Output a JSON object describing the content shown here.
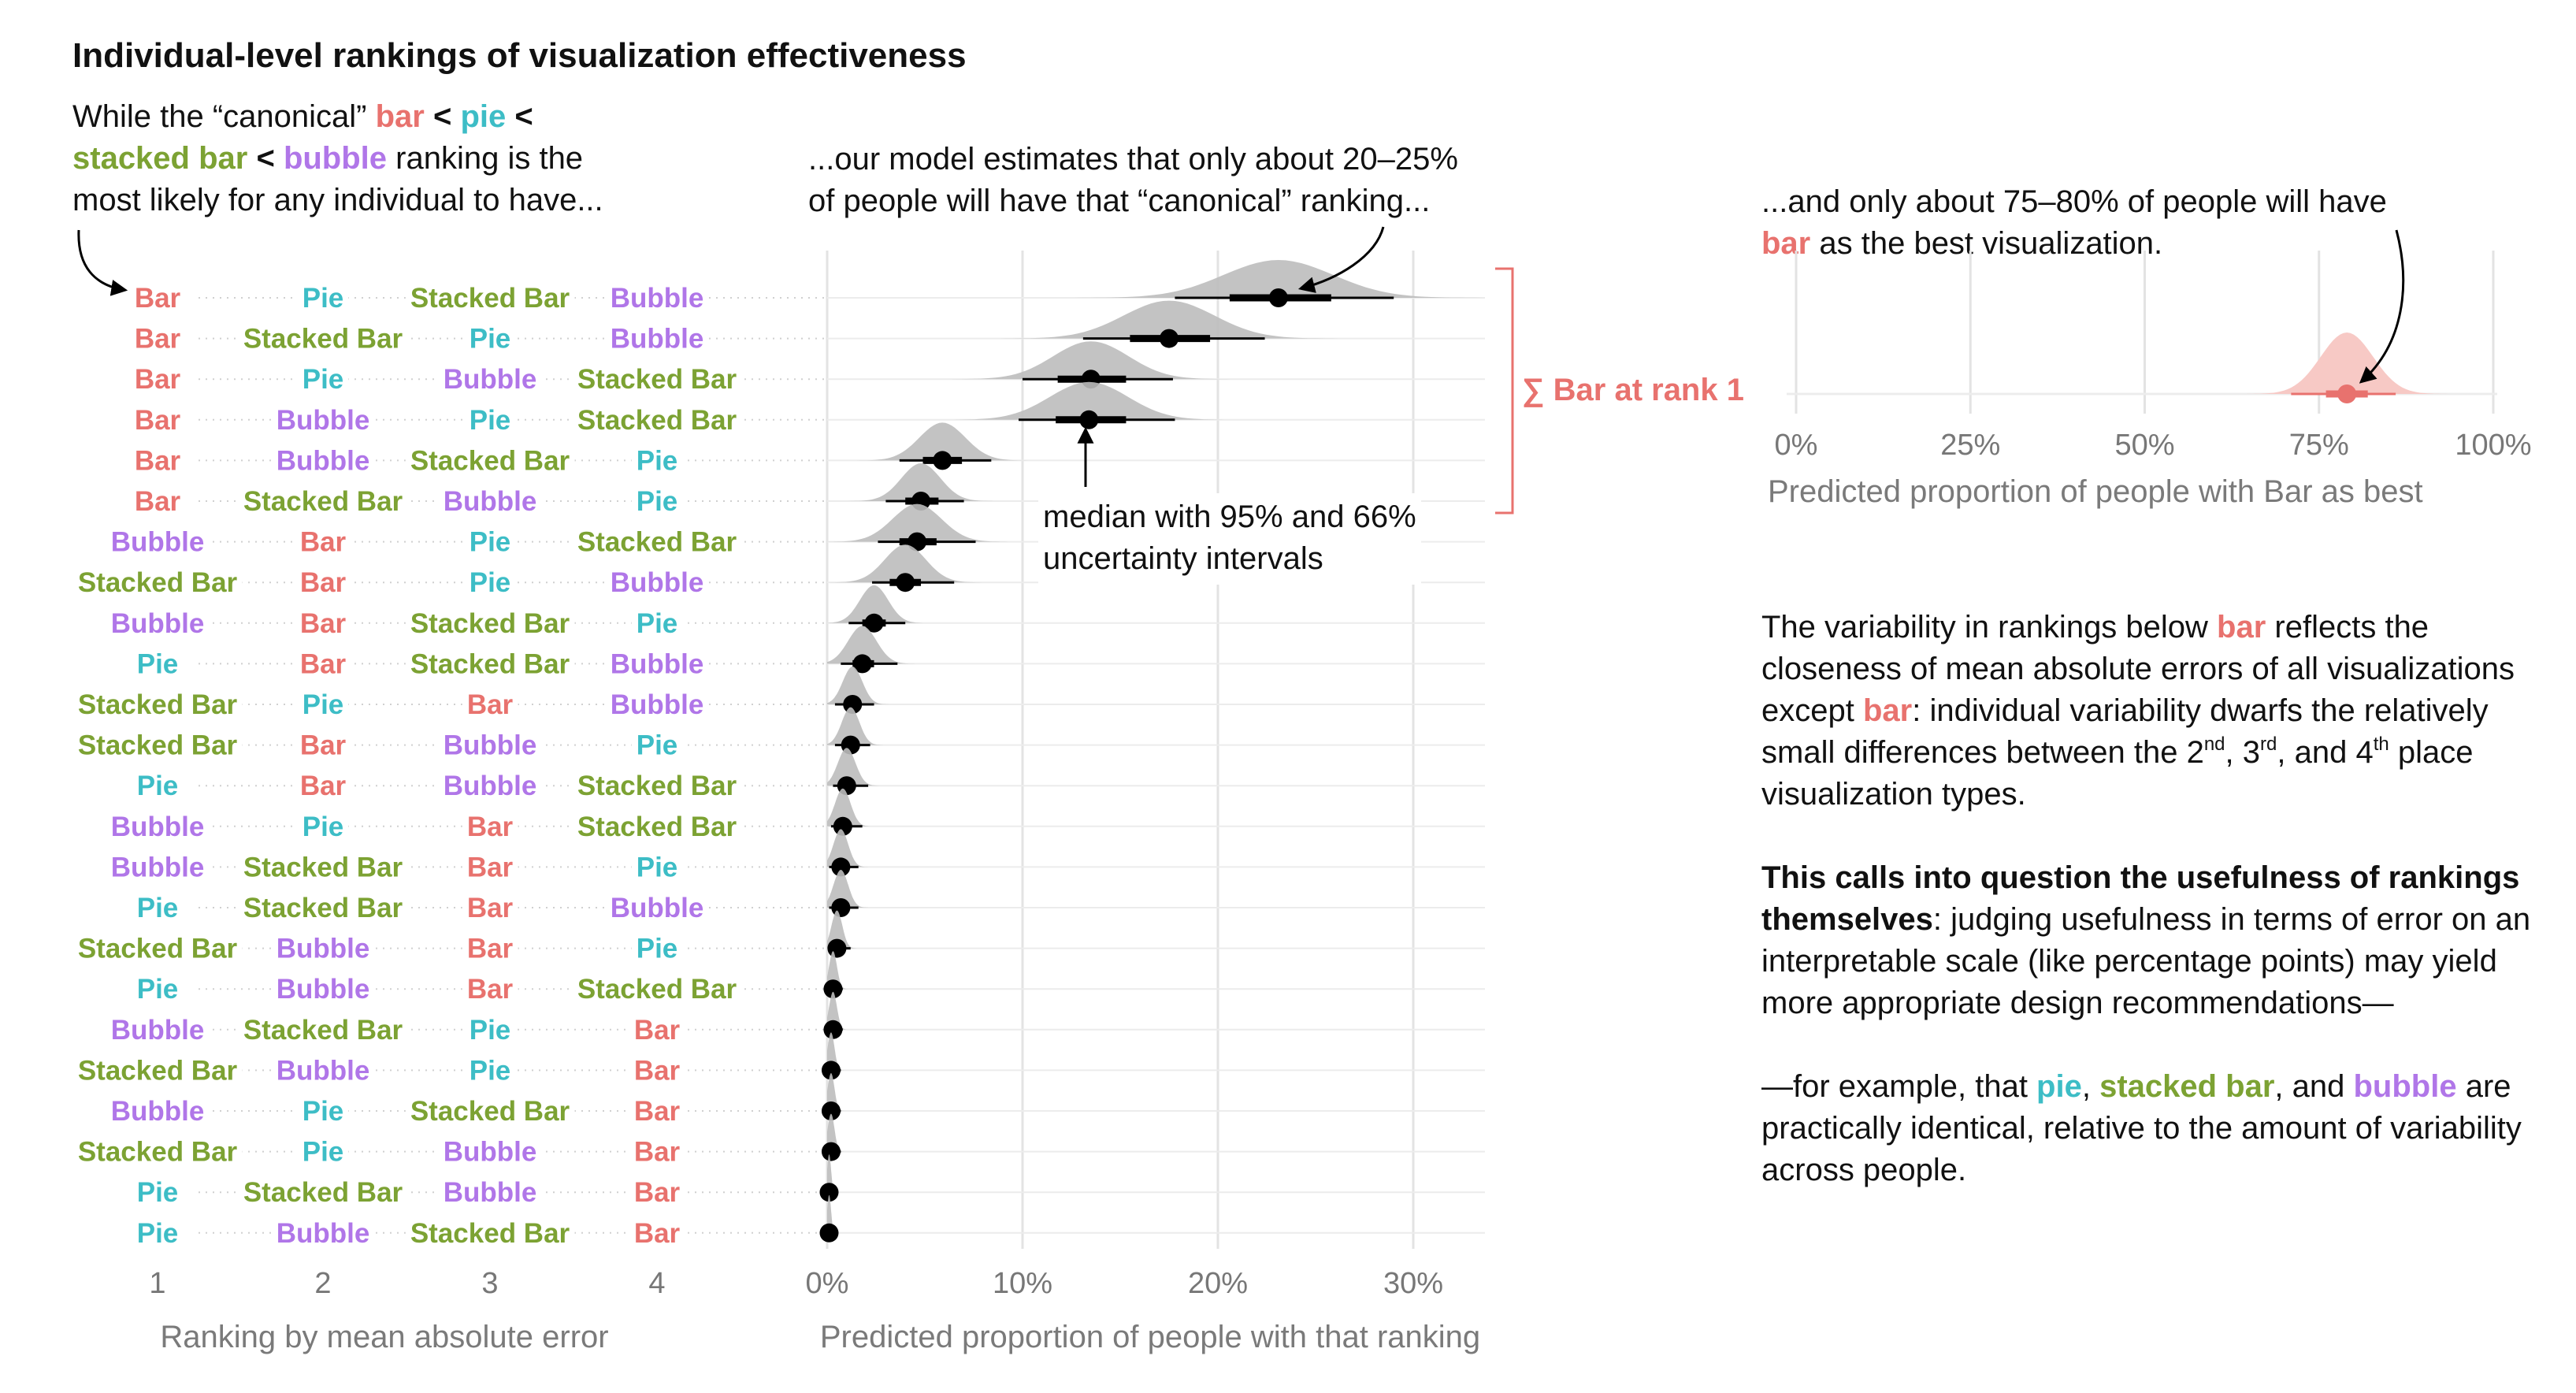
{
  "title": "Individual-level rankings of visualization effectiveness",
  "colors": {
    "Bar": "#E8726E",
    "Pie": "#3DBDC6",
    "Stacked Bar": "#7CA233",
    "Bubble": "#B076E8",
    "density": "#bdbdbd",
    "bar_density": "#f7c9c5",
    "grid": "#e3e3e3",
    "axis_text": "#777777"
  },
  "annotations": {
    "intro": {
      "p1": "While the “canonical” ",
      "bar": "bar",
      "lt1": " < ",
      "pie": "pie",
      "lt2": " <",
      "stacked": "stacked bar",
      "lt3": " < ",
      "bubble": "bubble",
      "p2": " ranking is the",
      "p3": "most likely for any individual to have..."
    },
    "model": {
      "line1": "...our model estimates that only about 20–25%",
      "line2": "of people will have that “canonical” ranking..."
    },
    "bar_best": {
      "line1": "...and only about 75–80% of people will have",
      "bar": "bar",
      "line2": " as the best visualization."
    },
    "median": {
      "line1": "median with 95% and 66%",
      "line2": "uncertainty intervals"
    },
    "sum_label": "∑ Bar at rank 1",
    "body": {
      "t1": "The variability in rankings below ",
      "bar1": "bar",
      "t2": " reflects the closeness of mean absolute errors of all visualizations except ",
      "bar2": "bar",
      "t3": ": individual variability dwarfs the relatively small differences between the 2",
      "sup_nd": "nd",
      "t4": ", 3",
      "sup_rd": "rd",
      "t5": ", and 4",
      "sup_th": "th",
      "t6": " place visualization types.",
      "bold": "This calls into question the usefulness of rankings themselves",
      "t7": ": judging usefulness in terms of error on an interpretable scale (like percentage points) may yield more appropriate design recommendations—",
      "t8": "—for example, that ",
      "pie": "pie",
      "c1": ", ",
      "stacked": "stacked bar",
      "c2": ", and ",
      "bubble": "bubble",
      "t9": " are practically identical, relative to the amount of variability across people."
    }
  },
  "chart_data": [
    {
      "type": "table",
      "xlabel": "Ranking by mean absolute error",
      "columns": [
        "1",
        "2",
        "3",
        "4"
      ],
      "rows": [
        [
          "Bar",
          "Pie",
          "Stacked Bar",
          "Bubble"
        ],
        [
          "Bar",
          "Stacked Bar",
          "Pie",
          "Bubble"
        ],
        [
          "Bar",
          "Pie",
          "Bubble",
          "Stacked Bar"
        ],
        [
          "Bar",
          "Bubble",
          "Pie",
          "Stacked Bar"
        ],
        [
          "Bar",
          "Bubble",
          "Stacked Bar",
          "Pie"
        ],
        [
          "Bar",
          "Stacked Bar",
          "Bubble",
          "Pie"
        ],
        [
          "Bubble",
          "Bar",
          "Pie",
          "Stacked Bar"
        ],
        [
          "Stacked Bar",
          "Bar",
          "Pie",
          "Bubble"
        ],
        [
          "Bubble",
          "Bar",
          "Stacked Bar",
          "Pie"
        ],
        [
          "Pie",
          "Bar",
          "Stacked Bar",
          "Bubble"
        ],
        [
          "Stacked Bar",
          "Pie",
          "Bar",
          "Bubble"
        ],
        [
          "Stacked Bar",
          "Bar",
          "Bubble",
          "Pie"
        ],
        [
          "Pie",
          "Bar",
          "Bubble",
          "Stacked Bar"
        ],
        [
          "Bubble",
          "Pie",
          "Bar",
          "Stacked Bar"
        ],
        [
          "Bubble",
          "Stacked Bar",
          "Bar",
          "Pie"
        ],
        [
          "Pie",
          "Stacked Bar",
          "Bar",
          "Bubble"
        ],
        [
          "Stacked Bar",
          "Bubble",
          "Bar",
          "Pie"
        ],
        [
          "Pie",
          "Bubble",
          "Bar",
          "Stacked Bar"
        ],
        [
          "Bubble",
          "Stacked Bar",
          "Pie",
          "Bar"
        ],
        [
          "Stacked Bar",
          "Bubble",
          "Pie",
          "Bar"
        ],
        [
          "Bubble",
          "Pie",
          "Stacked Bar",
          "Bar"
        ],
        [
          "Stacked Bar",
          "Pie",
          "Bubble",
          "Bar"
        ],
        [
          "Pie",
          "Stacked Bar",
          "Bubble",
          "Bar"
        ],
        [
          "Pie",
          "Bubble",
          "Stacked Bar",
          "Bar"
        ]
      ]
    },
    {
      "type": "scatter",
      "subtype": "interval-with-density",
      "xlabel": "Predicted proportion of people with that ranking",
      "xticks": [
        "0%",
        "10%",
        "20%",
        "30%"
      ],
      "xlim": [
        0,
        0.33
      ],
      "median": [
        0.231,
        0.175,
        0.135,
        0.134,
        0.059,
        0.048,
        0.046,
        0.04,
        0.024,
        0.018,
        0.013,
        0.012,
        0.01,
        0.008,
        0.007,
        0.007,
        0.005,
        0.003,
        0.003,
        0.002,
        0.002,
        0.002,
        0.001,
        0.001
      ],
      "int66": [
        [
          0.206,
          0.258
        ],
        [
          0.155,
          0.196
        ],
        [
          0.118,
          0.153
        ],
        [
          0.117,
          0.153
        ],
        [
          0.049,
          0.069
        ],
        [
          0.04,
          0.057
        ],
        [
          0.037,
          0.056
        ],
        [
          0.032,
          0.048
        ],
        [
          0.018,
          0.03
        ],
        [
          0.013,
          0.024
        ],
        [
          0.009,
          0.017
        ],
        [
          0.008,
          0.016
        ],
        [
          0.007,
          0.014
        ],
        [
          0.005,
          0.011
        ],
        [
          0.004,
          0.01
        ],
        [
          0.004,
          0.01
        ],
        [
          0.003,
          0.008
        ],
        [
          0.001,
          0.005
        ],
        [
          0.001,
          0.005
        ],
        [
          0.001,
          0.004
        ],
        [
          0.001,
          0.004
        ],
        [
          0.001,
          0.004
        ],
        [
          0.0,
          0.002
        ],
        [
          0.0,
          0.002
        ]
      ],
      "int95": [
        [
          0.178,
          0.29
        ],
        [
          0.131,
          0.224
        ],
        [
          0.1,
          0.177
        ],
        [
          0.098,
          0.178
        ],
        [
          0.037,
          0.084
        ],
        [
          0.03,
          0.07
        ],
        [
          0.026,
          0.076
        ],
        [
          0.023,
          0.065
        ],
        [
          0.011,
          0.04
        ],
        [
          0.007,
          0.036
        ],
        [
          0.004,
          0.024
        ],
        [
          0.004,
          0.022
        ],
        [
          0.003,
          0.021
        ],
        [
          0.002,
          0.018
        ],
        [
          0.001,
          0.016
        ],
        [
          0.001,
          0.016
        ],
        [
          0.001,
          0.012
        ],
        [
          0.0,
          0.008
        ],
        [
          0.0,
          0.008
        ],
        [
          0.0,
          0.007
        ],
        [
          0.0,
          0.007
        ],
        [
          0.0,
          0.007
        ],
        [
          0.0,
          0.004
        ],
        [
          0.0,
          0.004
        ]
      ]
    },
    {
      "type": "scatter",
      "subtype": "interval-with-density",
      "xlabel": "Predicted proportion of people with Bar as best",
      "xticks": [
        "0%",
        "25%",
        "50%",
        "75%",
        "100%"
      ],
      "xlim": [
        0,
        1
      ],
      "series": [
        {
          "name": "Bar",
          "median": 0.79,
          "int66": [
            0.76,
            0.82
          ],
          "int95": [
            0.71,
            0.86
          ]
        }
      ]
    }
  ]
}
